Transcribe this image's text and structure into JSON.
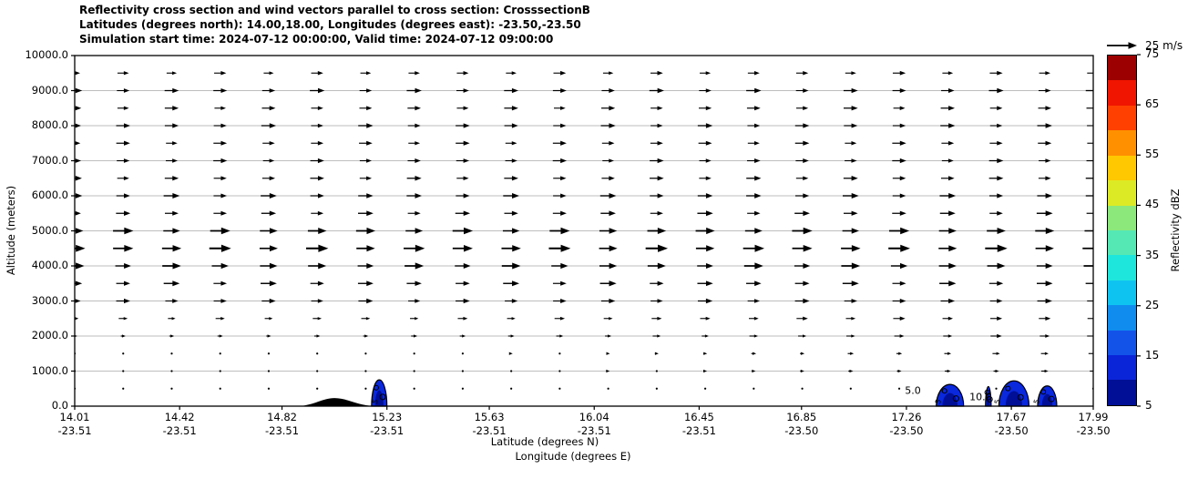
{
  "figure": {
    "title_lines": [
      "Reflectivity cross section and wind vectors parallel to cross section: CrosssectionB",
      "Latitudes (degrees north): 14.00,18.00, Longitudes (degrees east): -23.50,-23.50",
      "Simulation start time: 2024-07-12 00:00:00, Valid time: 2024-07-12 09:00:00"
    ],
    "quiver_key": {
      "label": "25 m/s",
      "speed_ms": 25
    },
    "axes": {
      "y_label": "Altitude (meters)",
      "x_label_line1": "Latitude (degrees N)",
      "x_label_line2": "Longitude (degrees E)"
    },
    "colorbar": {
      "label": "Reflectivity dBZ",
      "min": 5,
      "max": 75,
      "tick_labels": [
        "5",
        "15",
        "25",
        "35",
        "45",
        "55",
        "65",
        "75"
      ],
      "tick_values": [
        5,
        15,
        25,
        35,
        45,
        55,
        65,
        75
      ],
      "segment_colors_bottom_to_top": [
        "#000f96",
        "#0a24d8",
        "#1353e8",
        "#0f8cee",
        "#0fc3f0",
        "#1fe6dc",
        "#55e8b4",
        "#8ce87a",
        "#dcea25",
        "#ffc800",
        "#ff9000",
        "#ff4000",
        "#f01500",
        "#9c0000"
      ]
    }
  },
  "chart_data": {
    "type": "cross_section_quiver_contourf",
    "lat_range": [
      14.01,
      17.99
    ],
    "alt_range_m": [
      0,
      10000
    ],
    "gridlines_m": [
      1000,
      2000,
      3000,
      4000,
      5000,
      6000,
      7000,
      8000,
      9000
    ],
    "x_axis_ticks": [
      {
        "value": 14.01,
        "lat": "14.01",
        "lon": "-23.51"
      },
      {
        "value": 14.42,
        "lat": "14.42",
        "lon": "-23.51"
      },
      {
        "value": 14.82,
        "lat": "14.82",
        "lon": "-23.51"
      },
      {
        "value": 15.23,
        "lat": "15.23",
        "lon": "-23.51"
      },
      {
        "value": 15.63,
        "lat": "15.63",
        "lon": "-23.51"
      },
      {
        "value": 16.04,
        "lat": "16.04",
        "lon": "-23.51"
      },
      {
        "value": 16.45,
        "lat": "16.45",
        "lon": "-23.51"
      },
      {
        "value": 16.85,
        "lat": "16.85",
        "lon": "-23.50"
      },
      {
        "value": 17.26,
        "lat": "17.26",
        "lon": "-23.50"
      },
      {
        "value": 17.67,
        "lat": "17.67",
        "lon": "-23.50"
      },
      {
        "value": 17.99,
        "lat": "17.99",
        "lon": "-23.50"
      }
    ],
    "y_axis_ticks": [
      {
        "value": 0,
        "label": "0.0"
      },
      {
        "value": 1000,
        "label": "1000.0"
      },
      {
        "value": 2000,
        "label": "2000.0"
      },
      {
        "value": 3000,
        "label": "3000.0"
      },
      {
        "value": 4000,
        "label": "4000.0"
      },
      {
        "value": 5000,
        "label": "5000.0"
      },
      {
        "value": 6000,
        "label": "6000.0"
      },
      {
        "value": 7000,
        "label": "7000.0"
      },
      {
        "value": 8000,
        "label": "8000.0"
      },
      {
        "value": 9000,
        "label": "9000.0"
      },
      {
        "value": 10000,
        "label": "10000.0"
      }
    ],
    "wind": {
      "reference_speed_ms": 25,
      "direction": "left_to_right",
      "columns": 22,
      "rows": [
        {
          "alt_m": 9500,
          "left_ms": 10.0,
          "right_ms": 11.0,
          "skew": 1
        },
        {
          "alt_m": 9000,
          "left_ms": 12.5,
          "right_ms": 12.5,
          "skew": 1
        },
        {
          "alt_m": 8500,
          "left_ms": 11.5,
          "right_ms": 12.0,
          "skew": 1
        },
        {
          "alt_m": 8000,
          "left_ms": 12.5,
          "right_ms": 12.5,
          "skew": 1
        },
        {
          "alt_m": 7500,
          "left_ms": 11.5,
          "right_ms": 12.0,
          "skew": 1
        },
        {
          "alt_m": 7000,
          "left_ms": 11.5,
          "right_ms": 12.0,
          "skew": 1
        },
        {
          "alt_m": 6500,
          "left_ms": 12.0,
          "right_ms": 12.5,
          "skew": 1
        },
        {
          "alt_m": 6000,
          "left_ms": 13.5,
          "right_ms": 13.5,
          "skew": 1
        },
        {
          "alt_m": 5500,
          "left_ms": 12.5,
          "right_ms": 13.5,
          "skew": 1
        },
        {
          "alt_m": 5000,
          "left_ms": 17.0,
          "right_ms": 17.0,
          "skew": 1
        },
        {
          "alt_m": 4500,
          "left_ms": 18.5,
          "right_ms": 18.5,
          "skew": 1
        },
        {
          "alt_m": 4000,
          "left_ms": 16.0,
          "right_ms": 16.0,
          "skew": 1
        },
        {
          "alt_m": 3500,
          "left_ms": 13.5,
          "right_ms": 14.0,
          "skew": 1
        },
        {
          "alt_m": 3000,
          "left_ms": 12.0,
          "right_ms": 12.5,
          "skew": 1
        },
        {
          "alt_m": 2500,
          "left_ms": 7.5,
          "right_ms": 11.0,
          "skew": 1.5
        },
        {
          "alt_m": 2000,
          "left_ms": 4.5,
          "right_ms": 10.5,
          "skew": 1.8
        },
        {
          "alt_m": 1500,
          "left_ms": 1.5,
          "right_ms": 8.0,
          "skew": 2.2
        },
        {
          "alt_m": 1000,
          "left_ms": 1.3,
          "right_ms": 6.5,
          "skew": 2.2
        },
        {
          "alt_m": 500,
          "left_ms": 1.0,
          "right_ms": 1.5,
          "skew": 1
        }
      ]
    },
    "terrain": {
      "start_lat": 14.885,
      "peak_lat": 15.025,
      "end_lat": 15.18,
      "peak_height_m": 230,
      "color": "#000000"
    },
    "reflectivity_cells": [
      {
        "lat": 15.2,
        "width_deg": 0.06,
        "top_m": 750,
        "fill": "#0a28dc",
        "inner": "#000f96"
      },
      {
        "lat": 17.43,
        "width_deg": 0.107,
        "top_m": 620,
        "fill": "#0a28dc",
        "inner": "#000f96"
      },
      {
        "lat": 17.58,
        "width_deg": 0.022,
        "top_m": 560,
        "fill": "#0a28dc",
        "inner": "#000f96"
      },
      {
        "lat": 17.68,
        "width_deg": 0.118,
        "top_m": 720,
        "fill": "#0a28dc",
        "inner": "#000f96"
      },
      {
        "lat": 17.81,
        "width_deg": 0.075,
        "top_m": 580,
        "fill": "#0a28dc",
        "inner": "#000f96"
      }
    ],
    "contour_labels": [
      {
        "text": "5.0",
        "lat": 17.285,
        "alt_m": 440,
        "rot": 0,
        "size": "normal"
      },
      {
        "text": "10.0",
        "lat": 17.55,
        "alt_m": 260,
        "rot": 0,
        "size": "normal"
      },
      {
        "text": "5",
        "lat": 15.185,
        "alt_m": 130,
        "rot": -75,
        "size": "small"
      },
      {
        "text": "5",
        "lat": 17.385,
        "alt_m": 140,
        "rot": -75,
        "size": "small"
      },
      {
        "text": "5",
        "lat": 17.615,
        "alt_m": 130,
        "rot": -80,
        "size": "small"
      },
      {
        "text": "5",
        "lat": 17.77,
        "alt_m": 140,
        "rot": -75,
        "size": "small"
      }
    ]
  }
}
